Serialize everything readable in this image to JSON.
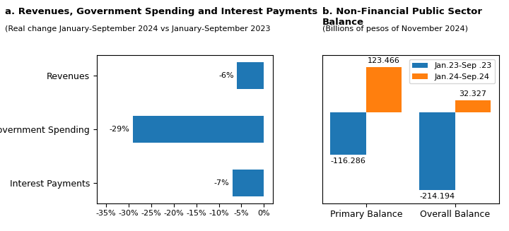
{
  "chart_data": [
    {
      "type": "bar",
      "orientation": "horizontal",
      "title": "a. Revenues, Government Spending and Interest Payments",
      "subtitle": "(Real change January-September 2024 vs January-September 2023",
      "categories": [
        "Revenues",
        "Government Spending",
        "Interest Payments"
      ],
      "values": [
        -6,
        -29,
        -7
      ],
      "value_labels": [
        "-6%",
        "-29%",
        "-7%"
      ],
      "data_labels": true,
      "xlim": [
        -37,
        2
      ],
      "xticks": [
        {
          "value": -35,
          "label": "-35%"
        },
        {
          "value": -30,
          "label": "-30%"
        },
        {
          "value": -25,
          "label": "-25%"
        },
        {
          "value": -20,
          "label": "-20%"
        },
        {
          "value": -15,
          "label": "-15%"
        },
        {
          "value": -10,
          "label": "-10%"
        },
        {
          "value": -5,
          "label": "-5%"
        },
        {
          "value": 0,
          "label": "0%"
        }
      ]
    },
    {
      "type": "bar",
      "title": "b. Non-Financial Public Sector Balance",
      "subtitle": "(Billions of pesos of November 2024)",
      "categories": [
        "Primary Balance",
        "Overall Balance"
      ],
      "series": [
        {
          "name": "Jan.23-Sep .23",
          "values": [
            -116.286,
            -214.194
          ]
        },
        {
          "name": "Jan.24-Sep.24",
          "values": [
            123.466,
            32.327
          ]
        }
      ],
      "ylim": [
        -250,
        155
      ],
      "data_labels": true,
      "legend": "upper right",
      "tick_labels": "x"
    }
  ]
}
